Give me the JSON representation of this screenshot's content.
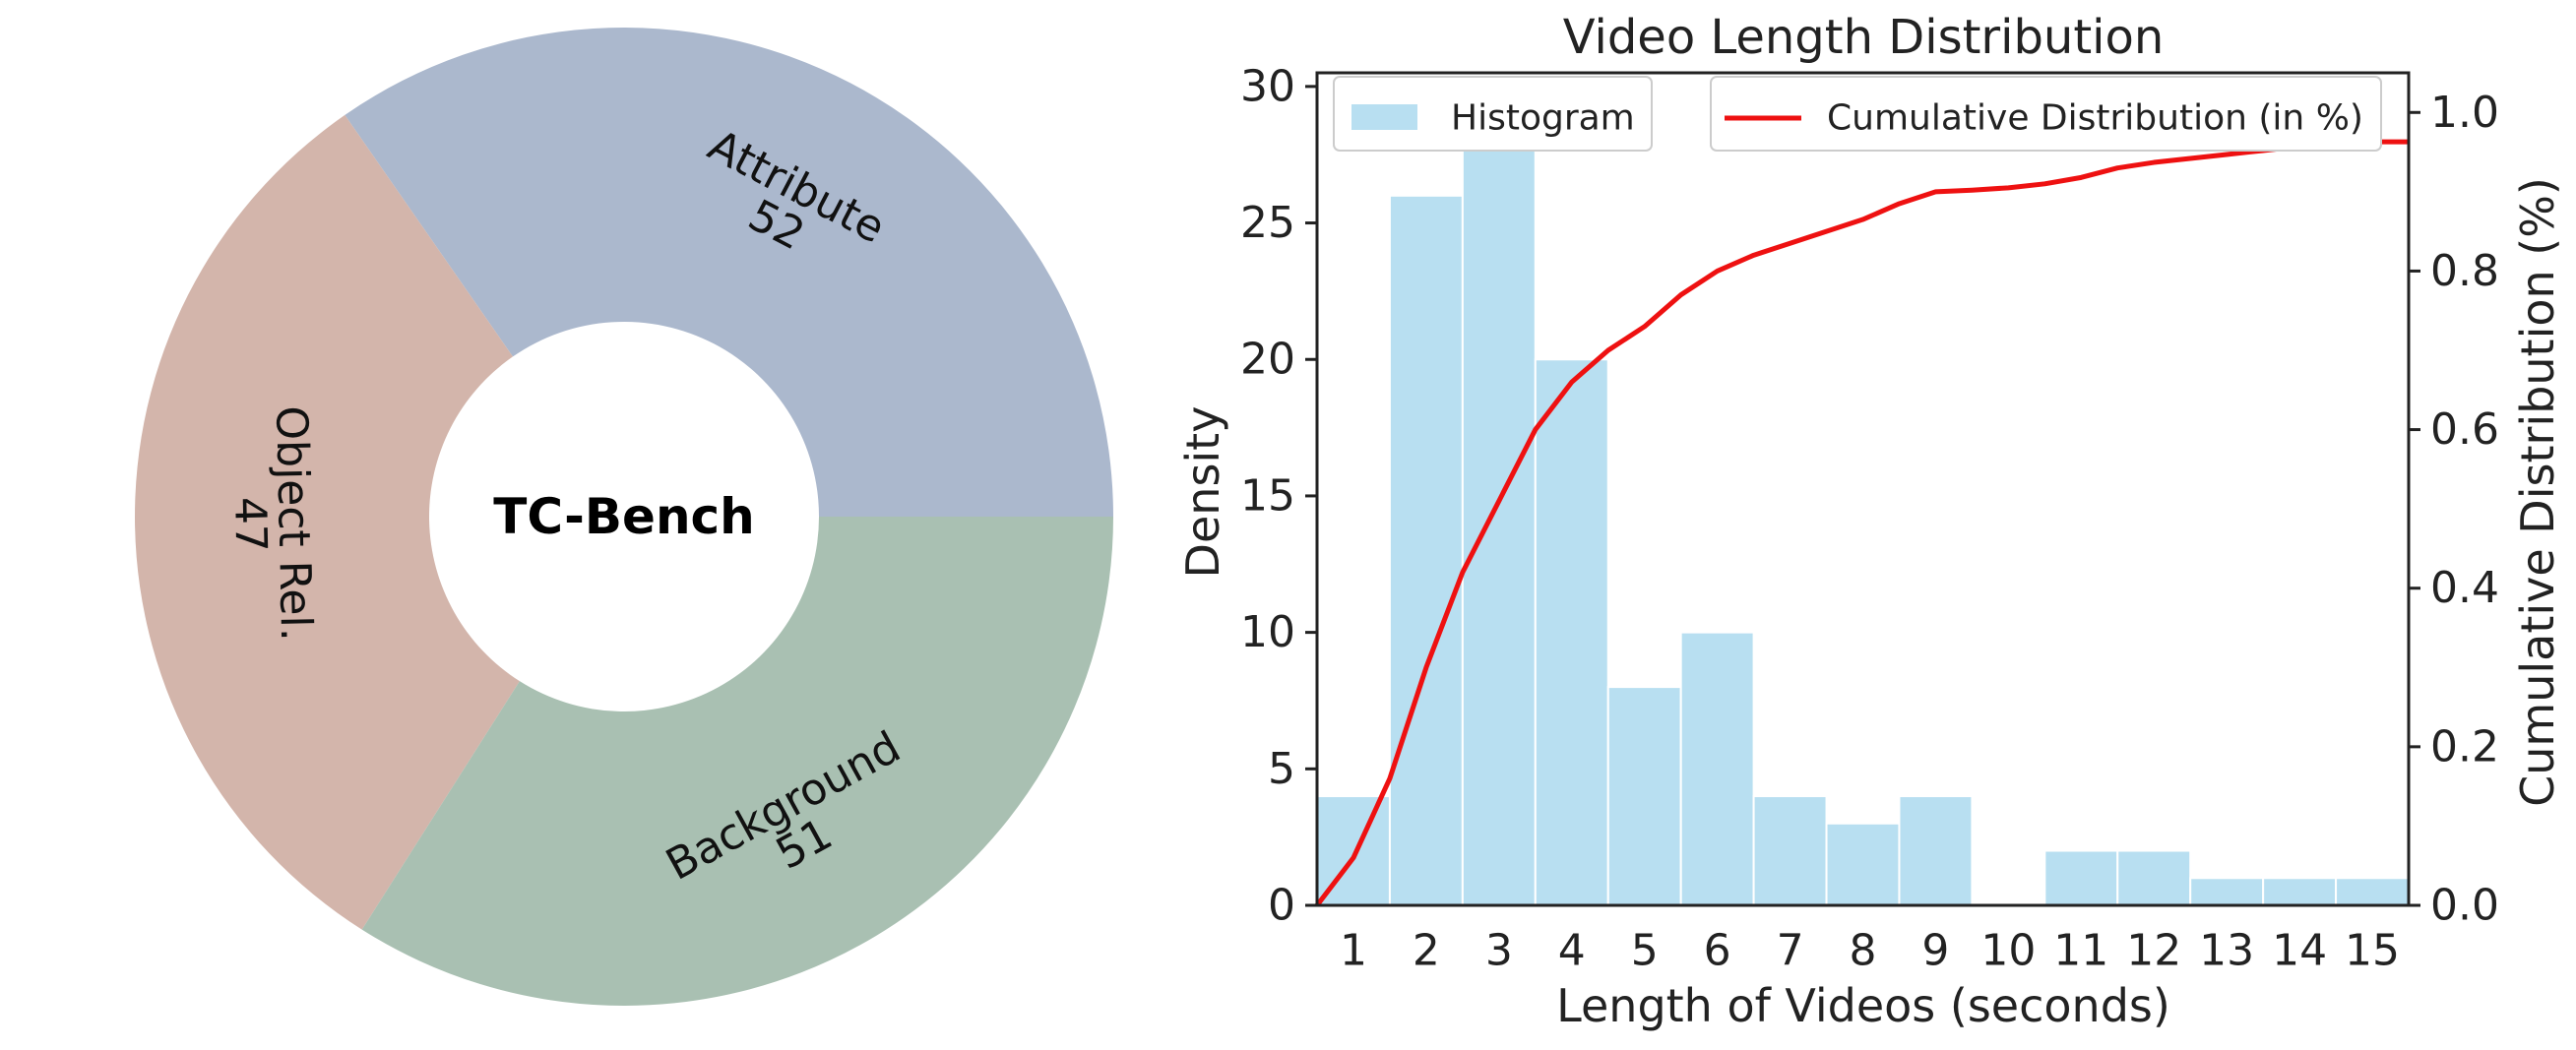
{
  "chart_data": [
    {
      "type": "pie",
      "style": "donut",
      "center_label": "TC-Bench",
      "slices": [
        {
          "label": "Attribute",
          "value": 52,
          "color": "#abb8cd"
        },
        {
          "label": "Object Rel.",
          "value": 47,
          "color": "#d3b5ab"
        },
        {
          "label": "Background",
          "value": 51,
          "color": "#a9c0b2"
        }
      ]
    },
    {
      "type": "bar",
      "title": "Video Length Distribution",
      "xlabel": "Length of Videos (seconds)",
      "ylabel": "Density",
      "ylabel_right": "Cumulative Distribution (%)",
      "x_ticks": [
        "1",
        "2",
        "3",
        "4",
        "5",
        "6",
        "7",
        "8",
        "9",
        "10",
        "11",
        "12",
        "13",
        "14",
        "15"
      ],
      "ylim": [
        0,
        30.5
      ],
      "y_ticks": [
        0,
        5,
        10,
        15,
        20,
        25,
        30
      ],
      "y2lim": [
        0,
        1.05
      ],
      "y2_ticks": [
        "0.0",
        "0.2",
        "0.4",
        "0.6",
        "0.8",
        "1.0"
      ],
      "bar_color": "#b8dff1",
      "line_color": "#ee1111",
      "legend": {
        "position": "top",
        "histogram": "Histogram",
        "cumulative": "Cumulative Distribution (in %)"
      },
      "histogram": {
        "bin_left_edges": [
          0.5,
          1.5,
          2.5,
          3.5,
          4.5,
          5.5,
          6.5,
          7.5,
          8.5,
          9.5,
          10.5,
          11.5,
          12.5,
          13.5,
          14.5
        ],
        "bin_width": 1,
        "values": [
          4,
          26,
          28,
          20,
          8,
          10,
          4,
          3,
          4,
          0,
          2,
          2,
          1,
          1,
          1
        ]
      },
      "cumulative": {
        "x": [
          0.5,
          1.0,
          1.5,
          2.0,
          2.5,
          3.0,
          3.5,
          4.0,
          4.5,
          5.0,
          5.5,
          6.0,
          6.5,
          7.0,
          7.5,
          8.0,
          8.5,
          9.0,
          9.5,
          10.0,
          10.5,
          11.0,
          11.5,
          12.0,
          12.5,
          13.0,
          13.5,
          14.0,
          14.5,
          15.0,
          15.5
        ],
        "y": [
          0.0,
          0.06,
          0.16,
          0.3,
          0.42,
          0.51,
          0.6,
          0.66,
          0.7,
          0.73,
          0.77,
          0.8,
          0.82,
          0.835,
          0.85,
          0.865,
          0.885,
          0.9,
          0.902,
          0.905,
          0.91,
          0.918,
          0.93,
          0.937,
          0.942,
          0.947,
          0.952,
          0.957,
          0.962,
          0.963,
          0.963
        ]
      }
    }
  ]
}
